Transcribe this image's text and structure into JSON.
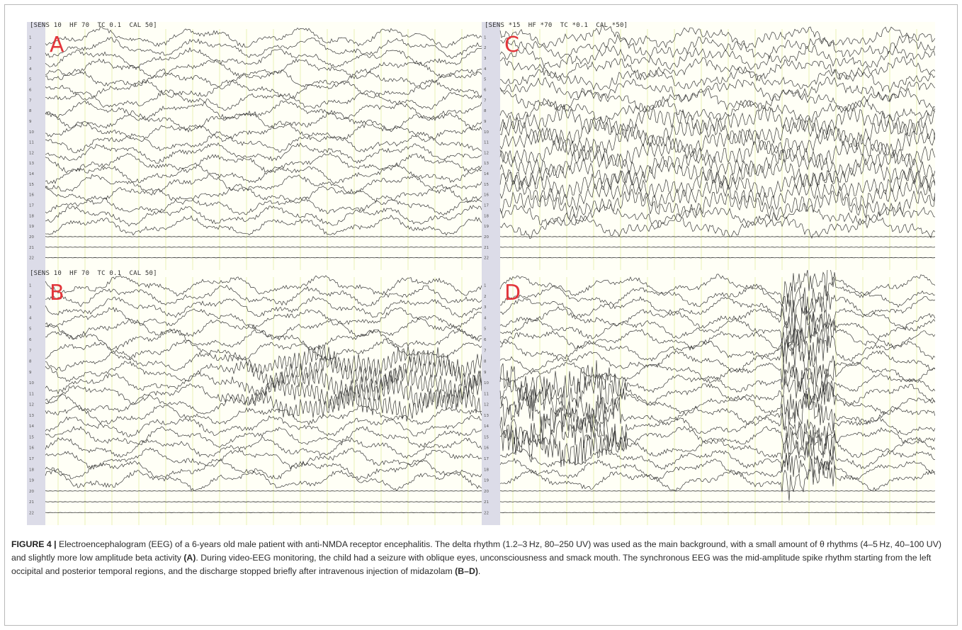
{
  "figure": {
    "panels": [
      {
        "id": "A",
        "letter": "A",
        "header": "[SENS 10  HF 70  TC 0.1  CAL 50]",
        "style": "normal"
      },
      {
        "id": "C",
        "letter": "C",
        "header": "[SENS *15  HF *70  TC *0.1  CAL *50]",
        "style": "fast"
      },
      {
        "id": "B",
        "letter": "B",
        "header": "[SENS 10  HF 70  TC 0.1  CAL 50]",
        "style": "burst"
      },
      {
        "id": "D",
        "letter": "D",
        "header": "",
        "style": "spiky"
      }
    ],
    "channel_labels": [
      "1",
      "2",
      "3",
      "4",
      "5",
      "6",
      "7",
      "8",
      "9",
      "10",
      "11",
      "12",
      "13",
      "14",
      "15",
      "16",
      "17",
      "18",
      "19",
      "20",
      "21",
      "22"
    ],
    "colors": {
      "trace": "#3a3a3a",
      "grid": "#e4efa8",
      "background": "#fffff6",
      "ruler": "#dcdce8",
      "letter": "#e2363b"
    }
  },
  "caption": {
    "label": "FIGURE 4 |",
    "text_1": " Electroencephalogram (EEG) of a 6-years old male patient with anti-NMDA receptor encephalitis. The delta rhythm (1.2–3 Hz, 80–250 UV) was used as the main background, with a small amount of θ rhythms (4–5 Hz, 40–100 UV) and slightly more low amplitude beta activity ",
    "ref_1": "(A)",
    "text_2": ". During video-EEG monitoring, the child had a seizure with oblique eyes, unconsciousness and smack mouth. The synchronous EEG was the mid-amplitude spike rhythm starting from the left occipital and posterior temporal regions, and the discharge stopped briefly after intravenous injection of midazolam ",
    "ref_2": "(B–D)",
    "text_3": "."
  }
}
